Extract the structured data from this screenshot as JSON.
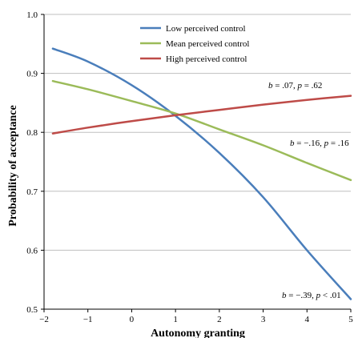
{
  "chart_data": {
    "type": "line",
    "title": "",
    "xlabel": "Autonomy granting",
    "ylabel": "Probability of acceptance",
    "xlim": [
      -2,
      5
    ],
    "ylim": [
      0.5,
      1.0
    ],
    "x_ticks": [
      "−2",
      "−1",
      "0",
      "1",
      "2",
      "3",
      "4",
      "5"
    ],
    "y_ticks": [
      "0.5",
      "0.6",
      "0.7",
      "0.8",
      "0.9",
      "1.0"
    ],
    "grid": "horizontal",
    "legend_position": "top-right",
    "x": [
      -1.8,
      -1.0,
      0.0,
      1.0,
      2.0,
      3.0,
      4.0,
      5.0
    ],
    "series": [
      {
        "name": "Low perceived control",
        "color": "#4a7ebb",
        "values": [
          0.942,
          0.92,
          0.88,
          0.828,
          0.765,
          0.69,
          0.6,
          0.517
        ],
        "annotation": {
          "b": "b",
          "b_value": " = −.39, ",
          "p": "p",
          "p_value": " < .01"
        }
      },
      {
        "name": "Mean perceived control",
        "color": "#9bbb59",
        "values": [
          0.887,
          0.873,
          0.853,
          0.832,
          0.805,
          0.778,
          0.748,
          0.719
        ],
        "annotation": {
          "b": "b",
          "b_value": " = −.16, ",
          "p": "p",
          "p_value": " = .16"
        }
      },
      {
        "name": "High perceived control",
        "color": "#be4b48",
        "values": [
          0.798,
          0.808,
          0.819,
          0.829,
          0.838,
          0.847,
          0.855,
          0.862
        ],
        "annotation": {
          "b": "b",
          "b_value": " = .07, ",
          "p": "p",
          "p_value": " = .62"
        }
      }
    ]
  }
}
